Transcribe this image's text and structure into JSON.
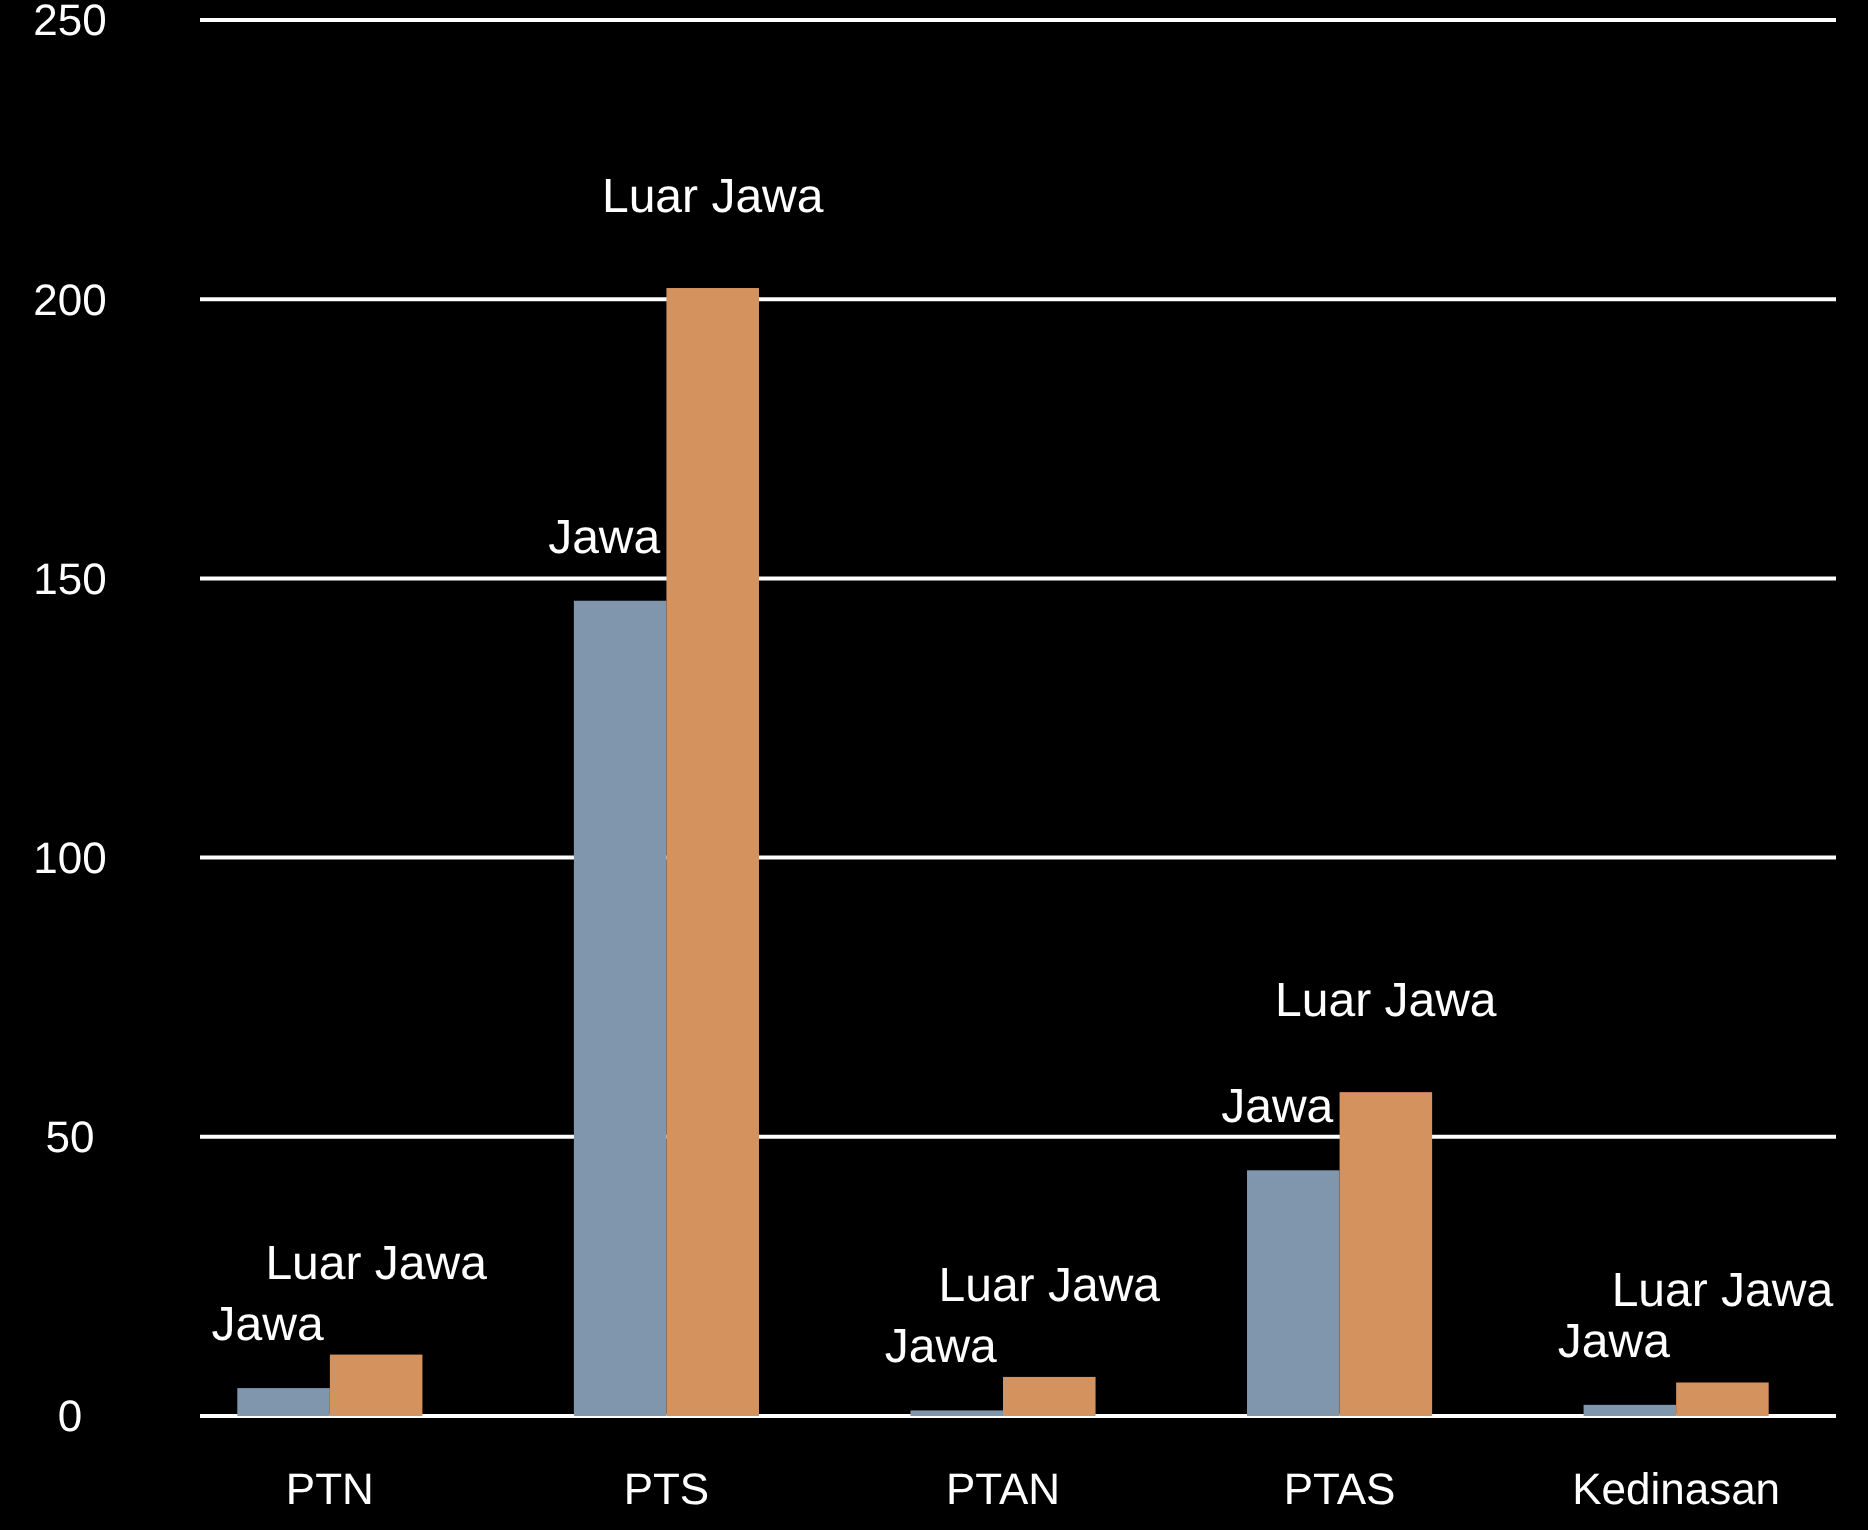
{
  "chart_data": {
    "type": "bar",
    "categories": [
      "PTN",
      "PTS",
      "PTAN",
      "PTAS",
      "Kedinasan"
    ],
    "series": [
      {
        "name": "Jawa",
        "color": "#7f96ad",
        "values": [
          5,
          146,
          1,
          44,
          2
        ]
      },
      {
        "name": "Luar Jawa",
        "color": "#d4925f",
        "values": [
          11,
          202,
          7,
          58,
          6
        ]
      }
    ],
    "ylim": [
      0,
      250
    ],
    "yticks": [
      0,
      50,
      100,
      150,
      200,
      250
    ],
    "grid": "y"
  }
}
